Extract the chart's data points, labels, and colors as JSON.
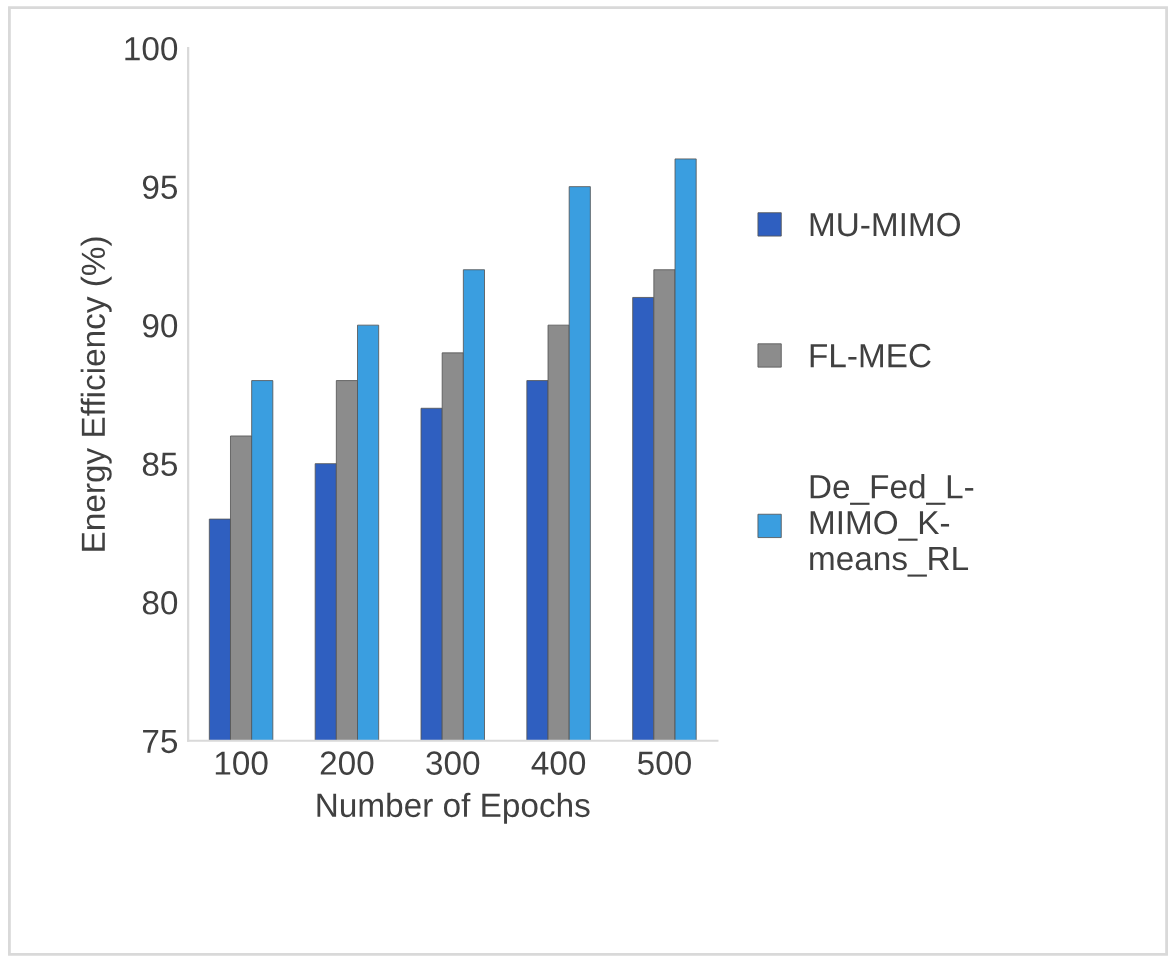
{
  "chart_data": {
    "type": "bar",
    "xlabel": "Number of Epochs",
    "ylabel": "Energy Efficiency (%)",
    "categories": [
      "100",
      "200",
      "300",
      "400",
      "500"
    ],
    "series": [
      {
        "name": "MU-MIMO",
        "color": "#2f5fc0",
        "values": [
          83,
          85,
          87,
          88,
          91
        ]
      },
      {
        "name": "FL-MEC",
        "color": "#8c8c8c",
        "values": [
          86,
          88,
          89,
          90,
          92
        ]
      },
      {
        "name": "De_Fed_L-MIMO_K-means_RL",
        "color": "#3a9ee0",
        "values": [
          88,
          90,
          92,
          95,
          96
        ]
      }
    ],
    "ylim": [
      75,
      100
    ],
    "yticks": [
      75,
      80,
      85,
      90,
      95,
      100
    ],
    "grid": false,
    "legend": "right"
  }
}
